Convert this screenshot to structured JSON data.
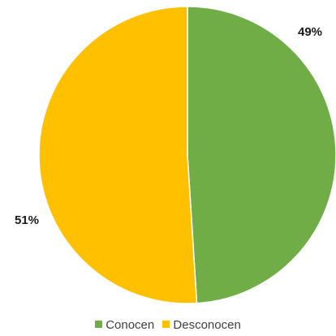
{
  "chart_data": {
    "type": "pie",
    "title": "",
    "slices": [
      {
        "label": "Conocen",
        "value": 49,
        "display": "49%",
        "color": "#70ad47"
      },
      {
        "label": "Desconocen",
        "value": 51,
        "display": "51%",
        "color": "#ffc000"
      }
    ],
    "start": "top",
    "direction": "clockwise",
    "legend_position": "bottom"
  },
  "legend": {
    "items": [
      {
        "label": "Conocen",
        "color": "#70ad47"
      },
      {
        "label": "Desconocen",
        "color": "#ffc000"
      }
    ]
  }
}
